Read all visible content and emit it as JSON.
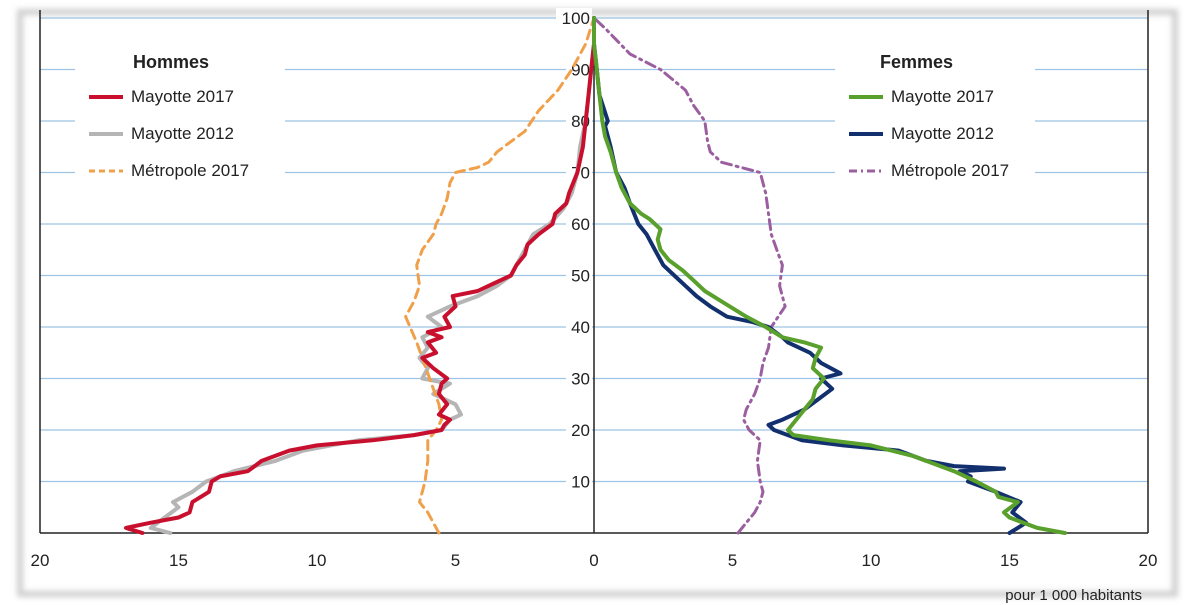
{
  "chart_data": {
    "type": "line",
    "title": "",
    "unit_label": "pour 1 000 habitants",
    "x_axis": {
      "ticks": [
        {
          "value": -20,
          "label": "20"
        },
        {
          "value": -15,
          "label": "15"
        },
        {
          "value": -10,
          "label": "10"
        },
        {
          "value": -5,
          "label": "5"
        },
        {
          "value": 0,
          "label": "0"
        },
        {
          "value": 5,
          "label": "5"
        },
        {
          "value": 10,
          "label": "10"
        },
        {
          "value": 15,
          "label": "15"
        },
        {
          "value": 20,
          "label": "20"
        }
      ],
      "range": [
        -20,
        20
      ]
    },
    "y_axis": {
      "ticks": [
        {
          "value": 10,
          "label": "10"
        },
        {
          "value": 20,
          "label": "20"
        },
        {
          "value": 30,
          "label": "30"
        },
        {
          "value": 40,
          "label": "40"
        },
        {
          "value": 50,
          "label": "50"
        },
        {
          "value": 60,
          "label": "60"
        },
        {
          "value": 70,
          "label": "70"
        },
        {
          "value": 80,
          "label": "80"
        },
        {
          "value": 90,
          "label": "90"
        },
        {
          "value": 100,
          "label": "100"
        }
      ],
      "range": [
        0,
        100
      ]
    },
    "grid": true,
    "legends": [
      {
        "title": "Hommes",
        "position": "top-left",
        "entries": [
          {
            "name": "Mayotte  2017",
            "color": "#c8102e",
            "dash": "solid"
          },
          {
            "name": "Mayotte 2012",
            "color": "#b5b5b5",
            "dash": "solid"
          },
          {
            "name": "Métropole 2017",
            "color": "#f0a04a",
            "dash": "dashed"
          }
        ]
      },
      {
        "title": "Femmes",
        "position": "top-right",
        "entries": [
          {
            "name": "Mayotte 2017",
            "color": "#5aa02c",
            "dash": "solid"
          },
          {
            "name": "Mayotte 2012",
            "color": "#13306e",
            "dash": "solid"
          },
          {
            "name": "Métropole 2017",
            "color": "#9b5fa0",
            "dash": "dashdot"
          }
        ]
      }
    ],
    "series": [
      {
        "group": "Hommes",
        "legend": "Mayotte 2012",
        "color": "#b5b5b5",
        "dash": "solid",
        "width": 4,
        "points": [
          [
            -15.3,
            0
          ],
          [
            -16.0,
            1
          ],
          [
            -15.5,
            3
          ],
          [
            -15.0,
            5
          ],
          [
            -15.2,
            6
          ],
          [
            -14.5,
            8
          ],
          [
            -14.0,
            10
          ],
          [
            -13.5,
            11
          ],
          [
            -13.0,
            12
          ],
          [
            -11.5,
            14
          ],
          [
            -10.5,
            16
          ],
          [
            -9.5,
            17
          ],
          [
            -8.5,
            18
          ],
          [
            -6.5,
            19
          ],
          [
            -5.5,
            20
          ],
          [
            -5.2,
            22
          ],
          [
            -4.8,
            23
          ],
          [
            -5.0,
            25
          ],
          [
            -5.8,
            27
          ],
          [
            -5.2,
            29
          ],
          [
            -6.2,
            30
          ],
          [
            -6.0,
            32
          ],
          [
            -6.3,
            34
          ],
          [
            -6.0,
            36
          ],
          [
            -6.2,
            38
          ],
          [
            -5.5,
            40
          ],
          [
            -6.0,
            42
          ],
          [
            -5.2,
            44
          ],
          [
            -4.2,
            46
          ],
          [
            -3.5,
            48
          ],
          [
            -3.0,
            50
          ],
          [
            -2.8,
            52
          ],
          [
            -2.5,
            55
          ],
          [
            -2.2,
            58
          ],
          [
            -1.6,
            60
          ],
          [
            -1.1,
            63
          ],
          [
            -0.8,
            66
          ],
          [
            -0.6,
            70
          ],
          [
            -0.5,
            75
          ],
          [
            -0.3,
            80
          ],
          [
            -0.2,
            85
          ],
          [
            -0.1,
            90
          ],
          [
            0,
            95
          ],
          [
            0,
            100
          ]
        ]
      },
      {
        "group": "Hommes",
        "legend": "Métropole 2017",
        "color": "#f0a04a",
        "dash": "dashed",
        "width": 3,
        "points": [
          [
            -5.6,
            0
          ],
          [
            -5.8,
            2
          ],
          [
            -6.0,
            4
          ],
          [
            -6.3,
            6
          ],
          [
            -6.2,
            8
          ],
          [
            -6.1,
            10
          ],
          [
            -6.0,
            14
          ],
          [
            -6.0,
            18
          ],
          [
            -5.7,
            20
          ],
          [
            -5.5,
            22
          ],
          [
            -5.6,
            25
          ],
          [
            -5.8,
            28
          ],
          [
            -6.0,
            31
          ],
          [
            -6.2,
            34
          ],
          [
            -6.4,
            37
          ],
          [
            -6.8,
            42
          ],
          [
            -6.5,
            45
          ],
          [
            -6.3,
            48
          ],
          [
            -6.4,
            52
          ],
          [
            -6.2,
            55
          ],
          [
            -5.8,
            58
          ],
          [
            -5.7,
            60
          ],
          [
            -5.5,
            62
          ],
          [
            -5.3,
            65
          ],
          [
            -5.2,
            68
          ],
          [
            -5.0,
            70
          ],
          [
            -4.2,
            71
          ],
          [
            -3.8,
            72
          ],
          [
            -3.5,
            74
          ],
          [
            -3.0,
            76
          ],
          [
            -2.5,
            78
          ],
          [
            -2.0,
            82
          ],
          [
            -1.3,
            86
          ],
          [
            -0.8,
            90
          ],
          [
            -0.3,
            95
          ],
          [
            0,
            100
          ]
        ]
      },
      {
        "group": "Hommes",
        "legend": "Mayotte  2017",
        "color": "#c8102e",
        "dash": "solid",
        "width": 4,
        "points": [
          [
            -16.3,
            0
          ],
          [
            -16.9,
            1
          ],
          [
            -16.0,
            2
          ],
          [
            -15.0,
            3
          ],
          [
            -14.6,
            4
          ],
          [
            -14.5,
            6
          ],
          [
            -13.9,
            8
          ],
          [
            -13.8,
            10
          ],
          [
            -13.5,
            11
          ],
          [
            -12.5,
            12
          ],
          [
            -12.0,
            14
          ],
          [
            -11.0,
            16
          ],
          [
            -10.0,
            17
          ],
          [
            -8.0,
            18
          ],
          [
            -6.5,
            19
          ],
          [
            -5.5,
            20
          ],
          [
            -5.4,
            21
          ],
          [
            -5.2,
            22
          ],
          [
            -5.6,
            23
          ],
          [
            -5.3,
            25
          ],
          [
            -5.6,
            27
          ],
          [
            -5.5,
            29
          ],
          [
            -5.3,
            30
          ],
          [
            -5.8,
            32
          ],
          [
            -6.2,
            34
          ],
          [
            -5.7,
            35
          ],
          [
            -6.0,
            37
          ],
          [
            -5.5,
            38
          ],
          [
            -6.0,
            39
          ],
          [
            -5.2,
            40
          ],
          [
            -5.4,
            42
          ],
          [
            -5.0,
            44
          ],
          [
            -5.1,
            46
          ],
          [
            -4.2,
            47
          ],
          [
            -3.8,
            48
          ],
          [
            -3.0,
            50
          ],
          [
            -2.8,
            52
          ],
          [
            -2.5,
            54
          ],
          [
            -2.4,
            56
          ],
          [
            -2.0,
            58
          ],
          [
            -1.5,
            60
          ],
          [
            -1.4,
            62
          ],
          [
            -1.0,
            64
          ],
          [
            -0.9,
            66
          ],
          [
            -0.6,
            70
          ],
          [
            -0.4,
            75
          ],
          [
            -0.3,
            80
          ],
          [
            -0.2,
            85
          ],
          [
            -0.1,
            90
          ],
          [
            0,
            95
          ],
          [
            0,
            100
          ]
        ]
      },
      {
        "group": "Femmes",
        "legend": "Métropole 2017",
        "color": "#9b5fa0",
        "dash": "dashdot",
        "width": 3,
        "points": [
          [
            5.2,
            0
          ],
          [
            5.5,
            2
          ],
          [
            5.8,
            4
          ],
          [
            6.0,
            6
          ],
          [
            6.1,
            8
          ],
          [
            6.0,
            10
          ],
          [
            5.9,
            14
          ],
          [
            6.0,
            18
          ],
          [
            5.6,
            20
          ],
          [
            5.4,
            22
          ],
          [
            5.5,
            24
          ],
          [
            5.8,
            27
          ],
          [
            6.0,
            30
          ],
          [
            6.1,
            33
          ],
          [
            6.3,
            36
          ],
          [
            6.4,
            40
          ],
          [
            6.9,
            44
          ],
          [
            6.7,
            48
          ],
          [
            6.8,
            52
          ],
          [
            6.6,
            55
          ],
          [
            6.4,
            58
          ],
          [
            6.3,
            62
          ],
          [
            6.2,
            66
          ],
          [
            6.0,
            70
          ],
          [
            5.3,
            71
          ],
          [
            4.6,
            72
          ],
          [
            4.2,
            74
          ],
          [
            4.1,
            76
          ],
          [
            4.0,
            80
          ],
          [
            3.6,
            83
          ],
          [
            3.3,
            86
          ],
          [
            2.4,
            90
          ],
          [
            1.3,
            93
          ],
          [
            0.4,
            98
          ],
          [
            0,
            100
          ]
        ]
      },
      {
        "group": "Femmes",
        "legend": "Mayotte 2012",
        "color": "#13306e",
        "dash": "solid",
        "width": 4,
        "points": [
          [
            15.0,
            0
          ],
          [
            15.3,
            1
          ],
          [
            15.6,
            2
          ],
          [
            15.1,
            4
          ],
          [
            15.4,
            6
          ],
          [
            14.5,
            8
          ],
          [
            14.0,
            9
          ],
          [
            13.5,
            10
          ],
          [
            13.6,
            11
          ],
          [
            13.2,
            12
          ],
          [
            14.8,
            12.5
          ],
          [
            13.0,
            13
          ],
          [
            12.0,
            14
          ],
          [
            11.0,
            16
          ],
          [
            9.0,
            17
          ],
          [
            7.5,
            18
          ],
          [
            6.5,
            20
          ],
          [
            6.3,
            21
          ],
          [
            6.8,
            22
          ],
          [
            7.6,
            24
          ],
          [
            8.1,
            26
          ],
          [
            8.6,
            28
          ],
          [
            8.2,
            30
          ],
          [
            8.9,
            31
          ],
          [
            8.2,
            33
          ],
          [
            7.8,
            35
          ],
          [
            7.0,
            37
          ],
          [
            6.8,
            38
          ],
          [
            6.3,
            40
          ],
          [
            5.7,
            41
          ],
          [
            4.8,
            42
          ],
          [
            4.2,
            44
          ],
          [
            3.7,
            46
          ],
          [
            3.3,
            48
          ],
          [
            2.9,
            50
          ],
          [
            2.5,
            52
          ],
          [
            2.2,
            55
          ],
          [
            1.9,
            58
          ],
          [
            1.6,
            60
          ],
          [
            1.3,
            64
          ],
          [
            1.1,
            67
          ],
          [
            0.8,
            70
          ],
          [
            0.6,
            75
          ],
          [
            0.4,
            79
          ],
          [
            0.5,
            80
          ],
          [
            0.2,
            85
          ],
          [
            0.1,
            90
          ],
          [
            0,
            95
          ],
          [
            0,
            100
          ]
        ]
      },
      {
        "group": "Femmes",
        "legend": "Mayotte 2017",
        "color": "#5aa02c",
        "dash": "solid",
        "width": 4,
        "points": [
          [
            17.0,
            0
          ],
          [
            16.0,
            1
          ],
          [
            15.5,
            2
          ],
          [
            15.0,
            3
          ],
          [
            14.8,
            4
          ],
          [
            15.3,
            6
          ],
          [
            14.6,
            7
          ],
          [
            14.5,
            8
          ],
          [
            13.8,
            10
          ],
          [
            13.0,
            12
          ],
          [
            12.5,
            13
          ],
          [
            11.5,
            15
          ],
          [
            10.0,
            17
          ],
          [
            8.5,
            18
          ],
          [
            7.2,
            19
          ],
          [
            7.0,
            20
          ],
          [
            7.3,
            22
          ],
          [
            7.6,
            24
          ],
          [
            7.9,
            26
          ],
          [
            8.0,
            28
          ],
          [
            8.3,
            30
          ],
          [
            7.9,
            32
          ],
          [
            8.0,
            34
          ],
          [
            8.2,
            36
          ],
          [
            7.6,
            37
          ],
          [
            6.8,
            38
          ],
          [
            6.2,
            40
          ],
          [
            5.5,
            42
          ],
          [
            5.2,
            43
          ],
          [
            4.6,
            45
          ],
          [
            4.0,
            47
          ],
          [
            3.6,
            49
          ],
          [
            3.2,
            51
          ],
          [
            2.7,
            53
          ],
          [
            2.4,
            55
          ],
          [
            2.3,
            57
          ],
          [
            2.4,
            59
          ],
          [
            2.0,
            61
          ],
          [
            1.7,
            62
          ],
          [
            1.3,
            64
          ],
          [
            1.0,
            67
          ],
          [
            0.8,
            70
          ],
          [
            0.6,
            74
          ],
          [
            0.4,
            77
          ],
          [
            0.3,
            80
          ],
          [
            0.2,
            85
          ],
          [
            0.1,
            90
          ],
          [
            0,
            95
          ],
          [
            0,
            100
          ]
        ]
      }
    ]
  }
}
